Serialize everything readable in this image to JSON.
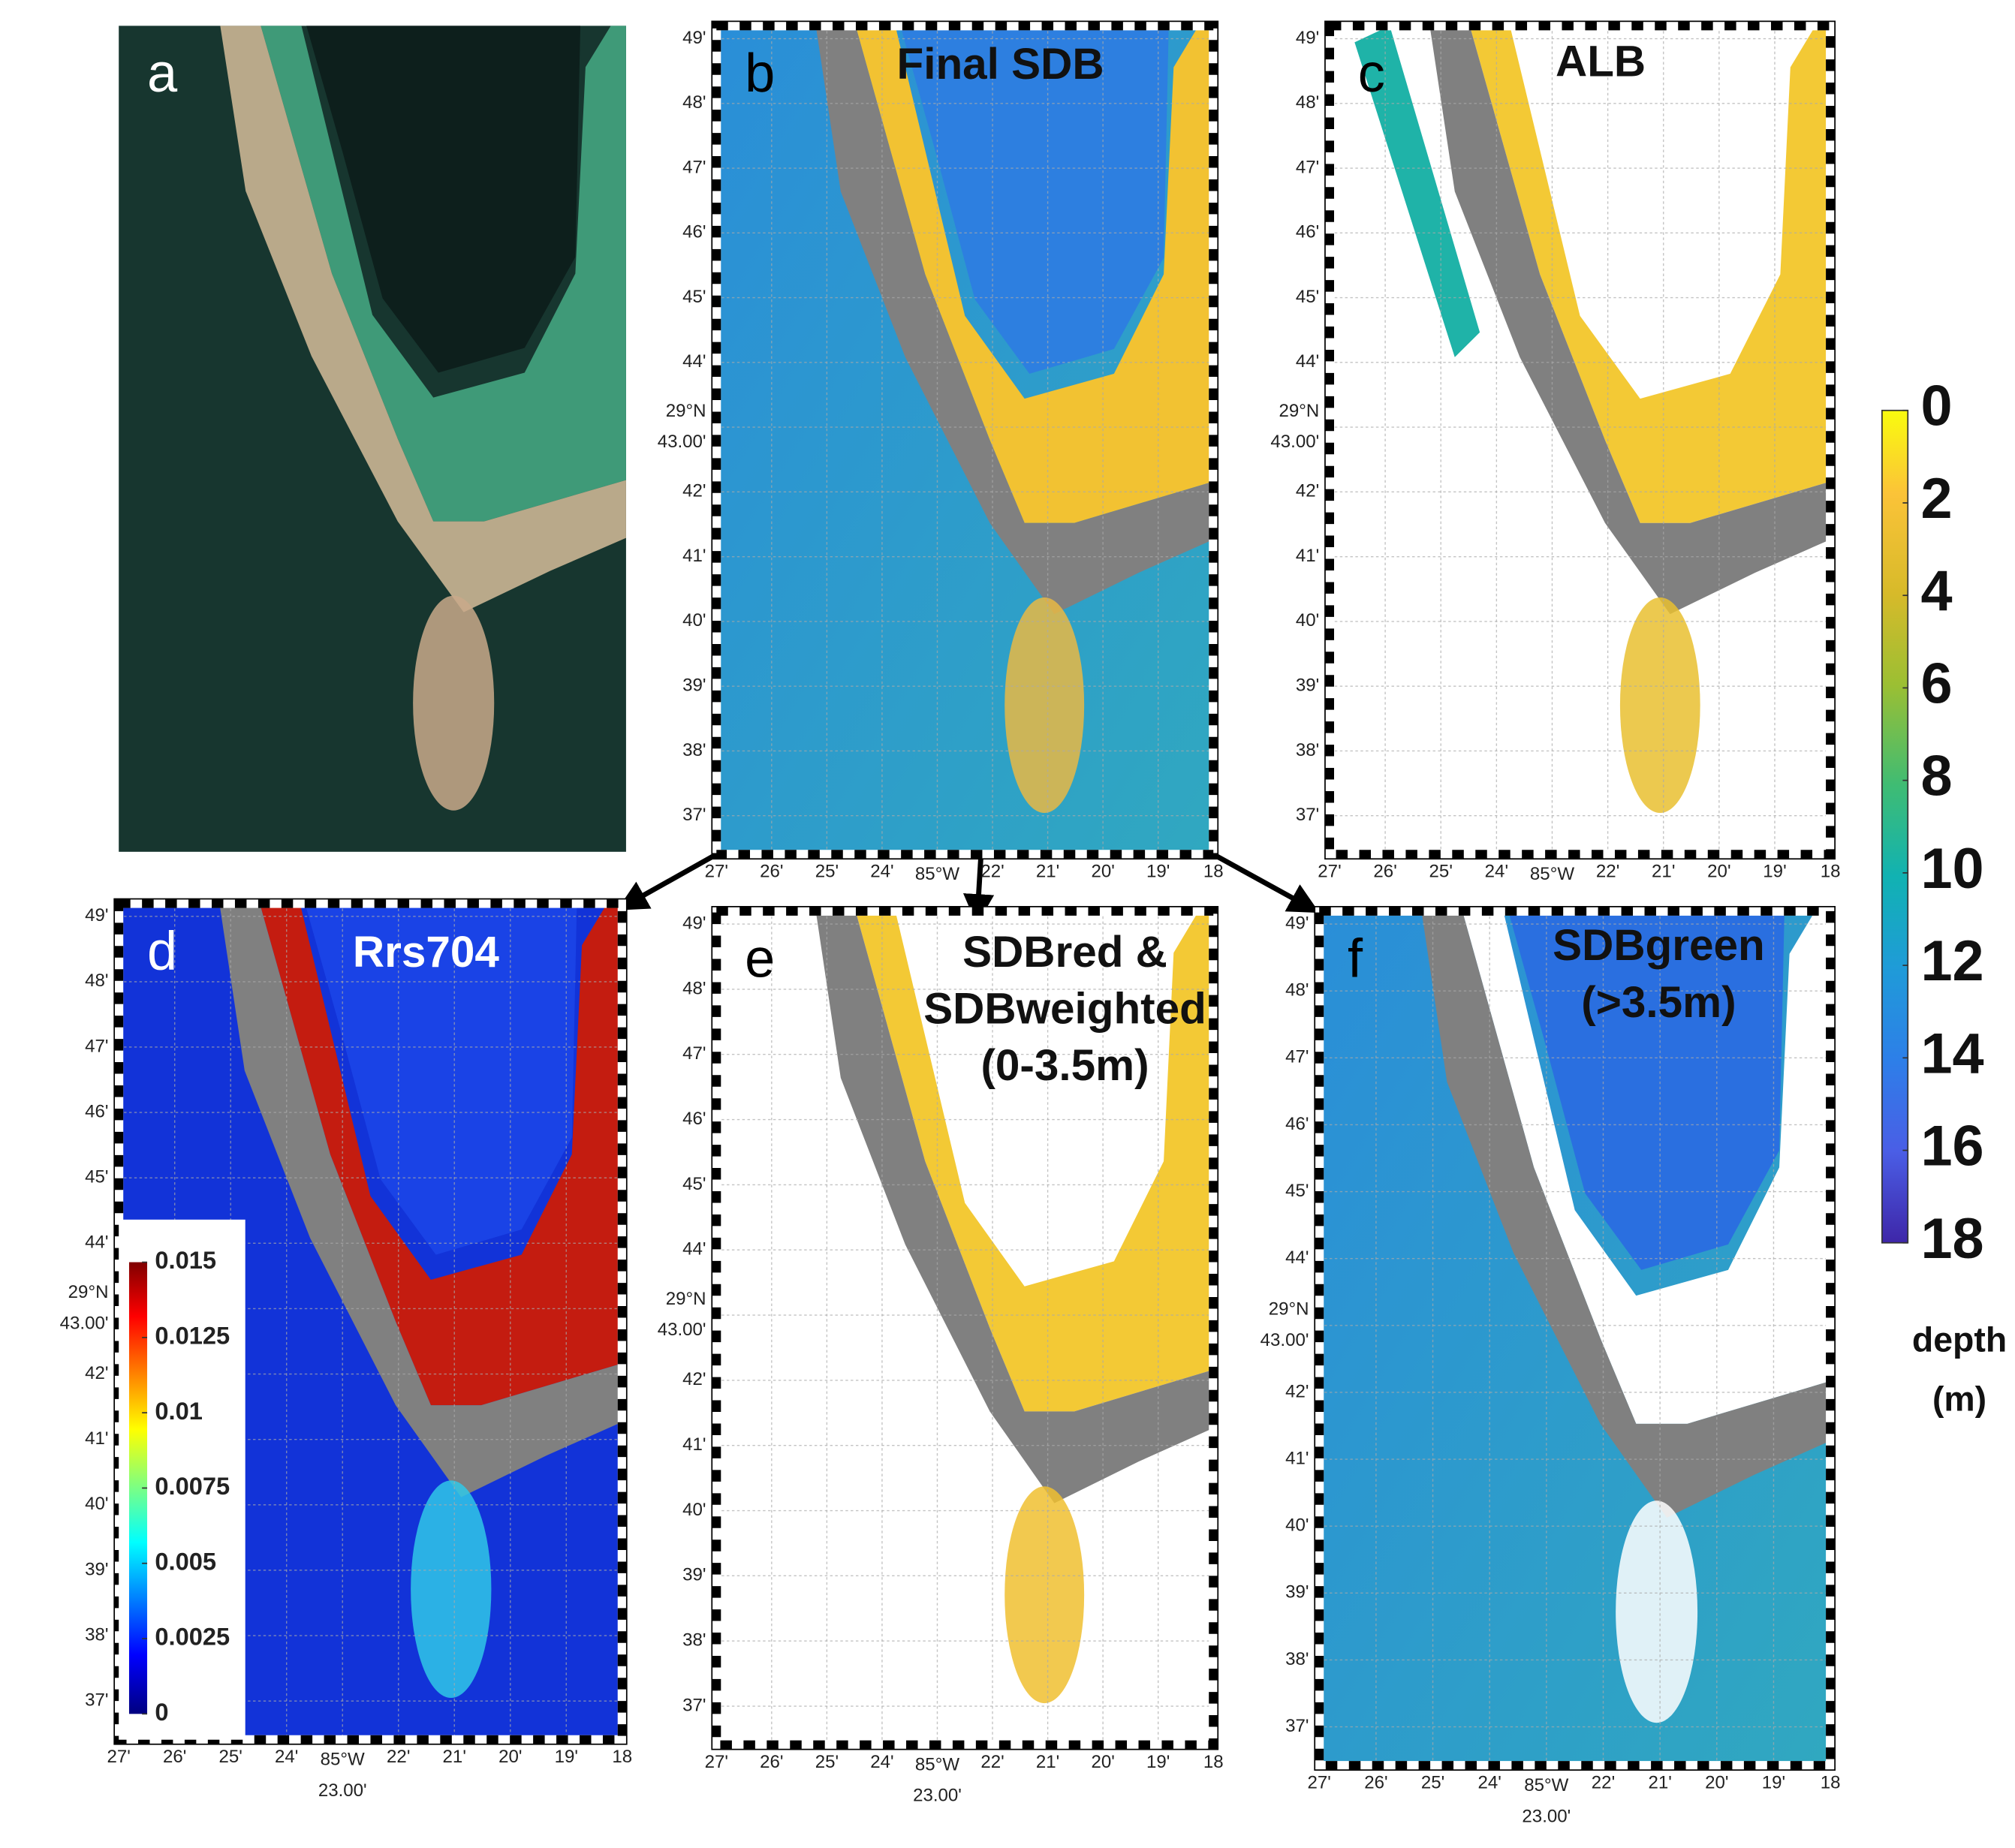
{
  "panels": [
    {
      "letter": "a"
    },
    {
      "letter": "b",
      "title": [
        "Final SDB"
      ]
    },
    {
      "letter": "c",
      "title": [
        "ALB"
      ]
    },
    {
      "letter": "d",
      "title": [
        "Rrs704"
      ]
    },
    {
      "letter": "e",
      "title": [
        "SDBred &",
        "SDBweighted",
        "(0-3.5m)"
      ]
    },
    {
      "letter": "f",
      "title": [
        "SDBgreen",
        "(>3.5m)"
      ]
    }
  ],
  "lat_ticks": [
    "49'",
    "48'",
    "47'",
    "46'",
    "45'",
    "44'",
    "42'",
    "41'",
    "40'",
    "39'",
    "38'",
    "37'"
  ],
  "lat_center": [
    "29°N",
    "43.00'"
  ],
  "lon_ticks": [
    "27'",
    "26'",
    "25'",
    "24'",
    "22'",
    "21'",
    "20'",
    "19'",
    "18"
  ],
  "lon_center": [
    "85°W",
    "23.00'"
  ],
  "depth_colorbar": {
    "lim": [
      0,
      18
    ],
    "ticks": [
      0,
      2,
      4,
      6,
      8,
      10,
      12,
      14,
      16,
      18
    ],
    "label": [
      "depth",
      "(m)"
    ]
  },
  "rrs_colorbar": {
    "lim": [
      0,
      0.015
    ],
    "ticks": [
      0.015,
      0.0125,
      0.01,
      0.0075,
      0.005,
      0.0025,
      0
    ]
  }
}
